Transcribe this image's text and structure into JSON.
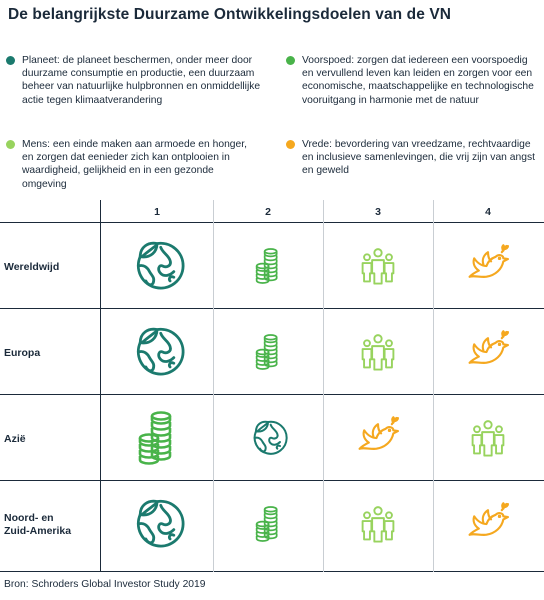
{
  "title": "De belangrijkste Duurzame Ontwikkelingsdoelen van de VN",
  "colors": {
    "planet": "#1b7a6e",
    "prosperity": "#49b34a",
    "people": "#98d35e",
    "peace": "#f5a81f",
    "text": "#1b2a3a"
  },
  "legend": [
    {
      "key": "planet",
      "text": "Planeet: de planeet beschermen, onder meer door duurzame consumptie en productie, een duurzaam beheer van natuurlijke hulpbronnen en onmiddellijke actie tegen klimaatverandering"
    },
    {
      "key": "prosperity",
      "text": "Voorspoed: zorgen dat iedereen een voorspoedig en vervullend leven kan leiden en zorgen voor een economische, maatschappelijke en technologische vooruitgang in harmonie met de natuur"
    },
    {
      "key": "people",
      "text": "Mens: een einde maken aan armoede en honger, en zorgen dat eenieder zich kan ontplooien in waardigheid, gelijkheid en in een gezonde omgeving"
    },
    {
      "key": "peace",
      "text": "Vrede: bevordering van vreedzame, rechtvaardige en inclusieve samenlevingen, die vrij zijn van angst en geweld"
    }
  ],
  "columns": [
    "1",
    "2",
    "3",
    "4"
  ],
  "rows": [
    {
      "label": "Wereldwijd",
      "cells": [
        "planet",
        "prosperity",
        "people",
        "peace"
      ]
    },
    {
      "label": "Europa",
      "cells": [
        "planet",
        "prosperity",
        "people",
        "peace"
      ]
    },
    {
      "label": "Azië",
      "cells": [
        "prosperity",
        "planet",
        "peace",
        "people"
      ]
    },
    {
      "label": "Noord- en\nZuid-Amerika",
      "cells": [
        "planet",
        "prosperity",
        "people",
        "peace"
      ]
    }
  ],
  "source": "Bron: Schroders Global Investor Study 2019"
}
